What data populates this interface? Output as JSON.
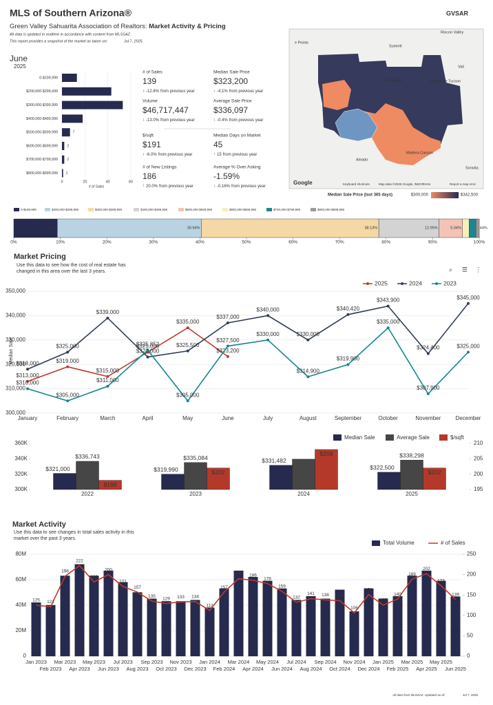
{
  "header": {
    "title": "MLS of Southern Arizona®",
    "subtitle": "Green Valley Sahuarita Association of Realtors: ",
    "subtitle_bold": "Market Activity & Pricing",
    "note": "All data is updated in realtime in accordance with content from MLSSAZ.",
    "snapshot": "This report provides a snapshot of the market as taken on:",
    "date": "Jul 7, 2025",
    "logo": "GVSAR",
    "month": "June",
    "year": "2025"
  },
  "stats": [
    {
      "label": "# of Sales",
      "value": "139",
      "change": "-12.6%",
      "note": "from previous year",
      "direction": "down",
      "color": "#c0392b"
    },
    {
      "label": "Median Sale Price",
      "value": "$323,200",
      "change": "-4.1%",
      "note": "from previous year",
      "direction": "down",
      "color": "#c0392b"
    },
    {
      "label": "Volume",
      "value": "$46,717,447",
      "change": "-13.0%",
      "note": "from previous year",
      "direction": "down",
      "color": "#c0392b"
    },
    {
      "label": "Average Sale Price",
      "value": "$336,097",
      "change": "-0.4%",
      "note": "from previous year",
      "direction": "down",
      "color": "#c0392b"
    },
    {
      "label": "$/sqft",
      "value": "$191",
      "change": "-6.0%",
      "note": "from previous year",
      "direction": "down",
      "color": "#c0392b"
    },
    {
      "label": "Median Days on Market",
      "value": "45",
      "change": "15",
      "note": "from previous year",
      "direction": "up",
      "color": "#c0392b"
    },
    {
      "label": "# of New Listings",
      "value": "186",
      "change": "20.0%",
      "note": "from previous year",
      "direction": "up",
      "color": "#2e8b3e"
    },
    {
      "label": "Average % Over Asking",
      "value": "-1.59%",
      "change": "-0.16%",
      "note": "from previous year",
      "direction": "down",
      "color": "#c0392b"
    }
  ],
  "map": {
    "places": [
      "Rincon Valley",
      "Summit",
      "e Points",
      "Vail",
      "Corona de Tucson",
      "Sahuarita",
      "Amado",
      "Sonoita",
      "Madera Canyon"
    ],
    "attribution": [
      "Keyboard shortcuts",
      "Map data ©2025 Google, INEGI",
      "Terms",
      "Report a map error"
    ],
    "brand": "Google",
    "legend_title": "Median Sale Price (last 365 days)",
    "legend_min": "$300,000",
    "legend_max": "$342,500"
  },
  "chart_data": [
    {
      "type": "hbar",
      "categories": [
        "0-$199,999",
        "$200,000-$299,999",
        "$300,000-$399,999",
        "$400,000-$499,999",
        "$500,000-$599,999",
        "$600,000-$699,999",
        "$700,000-$799,999",
        "$800,000-$999,999"
      ],
      "values": [
        13,
        43,
        53,
        18,
        7,
        2,
        2,
        1
      ],
      "color": "#262a4f",
      "xlim": [
        0,
        60
      ],
      "xticks": [
        0,
        20,
        40,
        60
      ],
      "xlabel": "# of Sales",
      "grid": true
    },
    {
      "type": "stacked100",
      "series": [
        {
          "name": "0-$199,999",
          "color": "#262a4f",
          "values": [
            9.35
          ],
          "value_labels": [
            "9.35%"
          ]
        },
        {
          "name": "$200,000-$299,999",
          "color": "#b9d3e2",
          "values": [
            30.94
          ],
          "value_labels": [
            "30.94%"
          ]
        },
        {
          "name": "$300,000-$399,999",
          "color": "#f4d8a5",
          "values": [
            38.13
          ],
          "value_labels": [
            "38.13%"
          ]
        },
        {
          "name": "$400,000-$499,999",
          "color": "#d3d3d3",
          "values": [
            12.95
          ],
          "value_labels": [
            "12.95%"
          ]
        },
        {
          "name": "$500,000-$599,999",
          "color": "#f2c3b6",
          "values": [
            5.04
          ],
          "value_labels": [
            "5.04%"
          ]
        },
        {
          "name": "$600,000-$699,999",
          "color": "#f6f0b8",
          "values": [
            1.44
          ],
          "value_labels": [
            null
          ]
        },
        {
          "name": "$700,000-$799,999",
          "color": "#1b8793",
          "values": [
            1.44
          ],
          "value_labels": [
            "1.44%"
          ]
        },
        {
          "name": "$800,000-$999,999",
          "color": "#9a9a9a",
          "values": [
            0.72
          ],
          "value_labels": [
            null
          ]
        }
      ],
      "xlim": [
        0,
        100
      ],
      "xticks": [
        {
          "value": 0,
          "label": "0%"
        },
        {
          "value": 10,
          "label": "10%"
        },
        {
          "value": 20,
          "label": "20%"
        },
        {
          "value": 30,
          "label": "30%"
        },
        {
          "value": 40,
          "label": "40%"
        },
        {
          "value": 50,
          "label": "50%"
        },
        {
          "value": 60,
          "label": "60%"
        },
        {
          "value": 70,
          "label": "70%"
        },
        {
          "value": 80,
          "label": "80%"
        },
        {
          "value": 90,
          "label": "90%"
        },
        {
          "value": 100,
          "label": "100%"
        }
      ]
    },
    {
      "type": "line",
      "title": "Market Pricing",
      "subtitle": "Use this data to see how the cost of real estate has changed in this area over the last 3 years.",
      "ylabel": "Median Sale",
      "categories": [
        "January",
        "February",
        "March",
        "April",
        "May",
        "June",
        "July",
        "August",
        "September",
        "October",
        "November",
        "December"
      ],
      "series": [
        {
          "name": "2025",
          "color": "#c0392b",
          "values": [
            313000,
            319000,
            315000,
            325000,
            335000,
            323200,
            null,
            null,
            null,
            null,
            null,
            null
          ],
          "value_labels": [
            "$313,000",
            "$319,000",
            "$315,000",
            "$325,000",
            "$335,000",
            "$323,200",
            null,
            null,
            null,
            null,
            null,
            null
          ]
        },
        {
          "name": "2024",
          "color": "#2c3e55",
          "values": [
            318000,
            325000,
            339000,
            323000,
            325500,
            337000,
            340000,
            330000,
            340420,
            343900,
            324400,
            345000
          ],
          "value_labels": [
            "$318,000",
            "$325,000",
            "$339,000",
            "$323,000",
            "$325,500",
            "$337,000",
            "$340,000",
            "$330,000",
            "$340,420",
            "$343,900",
            "$324,400",
            "$345,000"
          ]
        },
        {
          "name": "2023",
          "color": "#13868f",
          "values": [
            310000,
            305000,
            311000,
            325852,
            305000,
            327500,
            330000,
            314900,
            319900,
            335000,
            307900,
            325000
          ],
          "value_labels": [
            "$310,000",
            "$305,000",
            "$311,000",
            "$325,852",
            "$305,000",
            "$327,500",
            "$330,000",
            "$314,900",
            "$319,900",
            "$335,000",
            "$307,900",
            "$325,000"
          ]
        }
      ],
      "ylim": [
        300000,
        350000
      ],
      "yticks": [
        {
          "value": 300000,
          "label": "300,000"
        },
        {
          "value": 310000,
          "label": "310,000"
        },
        {
          "value": 320000,
          "label": "320,000"
        },
        {
          "value": 330000,
          "label": "330,000"
        },
        {
          "value": 340000,
          "label": "340,000"
        },
        {
          "value": 350000,
          "label": "350,000"
        }
      ],
      "grid": true,
      "legend": "top-right"
    },
    {
      "type": "grouped",
      "categories": [
        "2022",
        "2023",
        "2024",
        "2025"
      ],
      "series": [
        {
          "name": "Median Sale",
          "color": "#262a4f",
          "values": [
            321000,
            319990,
            331482,
            322500
          ],
          "value_labels": [
            "$321,000",
            "$319,990",
            "$331,482",
            "$322,500"
          ]
        },
        {
          "name": "Average Sale",
          "color": "#464646",
          "values": [
            336743,
            335084,
            339500,
            338298
          ],
          "value_labels": [
            "$336,743",
            "$335,084",
            null,
            "$338,298"
          ]
        },
        {
          "name": "$/sqft",
          "color": "#b5392a",
          "axis": "y2",
          "values": [
            198,
            202,
            208,
            202
          ],
          "value_labels": [
            "$198",
            "$202",
            "$208",
            "$202"
          ]
        }
      ],
      "ylim": [
        300000,
        360000
      ],
      "yticks": [
        {
          "value": 300000,
          "label": "300K"
        },
        {
          "value": 320000,
          "label": "320K"
        },
        {
          "value": 340000,
          "label": "340K"
        },
        {
          "value": 360000,
          "label": "360K"
        }
      ],
      "y2lim": [
        195,
        210
      ],
      "y2ticks": [
        195,
        200,
        205,
        210
      ],
      "legend": "top-right"
    },
    {
      "type": "combo",
      "title": "Market Activity",
      "subtitle": "Use this data to see changes in total sales activity in this market over the past 3 years.",
      "categories": [
        "Jan 2023",
        "Feb 2023",
        "Mar 2023",
        "Apr 2023",
        "May 2023",
        "Jun 2023",
        "Jul 2023",
        "Aug 2023",
        "Sep 2023",
        "Oct 2023",
        "Nov 2023",
        "Dec 2023",
        "Jan 2024",
        "Feb 2024",
        "Mar 2024",
        "Apr 2024",
        "May 2024",
        "Jun 2024",
        "Jul 2024",
        "Aug 2024",
        "Sep 2024",
        "Oct 2024",
        "Nov 2024",
        "Dec 2024",
        "Jan 2025",
        "Feb 2025",
        "Mar 2025",
        "Apr 2025",
        "May 2025",
        "Jun 2025"
      ],
      "series": [
        {
          "name": "Total Volume",
          "color": "#262a4f",
          "values": [
            42000000,
            40000000,
            63000000,
            72000000,
            63000000,
            67000000,
            58000000,
            50000000,
            45000000,
            43000000,
            43000000,
            44000000,
            38000000,
            53000000,
            67000000,
            62000000,
            59000000,
            53000000,
            44000000,
            47000000,
            45000000,
            52000000,
            35000000,
            53000000,
            45000000,
            47000000,
            63000000,
            67000000,
            59000000,
            46717447
          ]
        },
        {
          "name": "# of Sales",
          "color": "#c0392b",
          "axis": "y2",
          "values": [
            125,
            121,
            196,
            222,
            182,
            200,
            171,
            157,
            135,
            129,
            133,
            134,
            112,
            157,
            190,
            186,
            178,
            159,
            132,
            141,
            138,
            136,
            106,
            151,
            125,
            140,
            189,
            202,
            173,
            139
          ]
        }
      ],
      "ylim": [
        0,
        80000000
      ],
      "yticks": [
        0,
        {
          "value": 20000000,
          "label": "20M"
        },
        {
          "value": 40000000,
          "label": "40M"
        },
        {
          "value": 60000000,
          "label": "60M"
        },
        {
          "value": 80000000,
          "label": "80M"
        }
      ],
      "y2lim": [
        0,
        250
      ],
      "y2ticks": [
        0,
        50,
        100,
        150,
        200,
        250
      ],
      "grid": true,
      "legend": "top-right"
    }
  ],
  "footer": {
    "note": "All data from MLSSAZ.  Updated as of:",
    "date": "Jul 7, 2025"
  }
}
